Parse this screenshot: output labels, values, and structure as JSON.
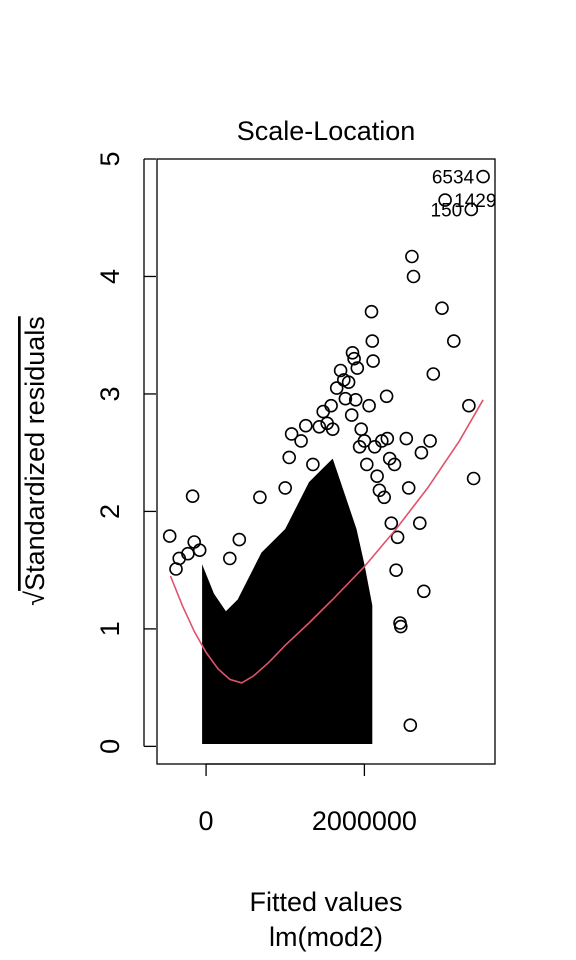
{
  "chart_data": {
    "type": "scatter",
    "title": "Scale-Location",
    "xlabel": "Fitted values",
    "xlabel2": "lm(mod2)",
    "ylabel": "Standardized residuals",
    "ylabel_prefix": "√",
    "xlim": [
      -620000,
      3650000
    ],
    "ylim": [
      -0.15,
      5.0
    ],
    "x_ticks": [
      0,
      2000000
    ],
    "x_tick_labels": [
      "0",
      "2000000"
    ],
    "y_ticks": [
      0,
      1,
      2,
      3,
      4,
      5
    ],
    "y_tick_labels": [
      "0",
      "1",
      "2",
      "3",
      "4",
      "5"
    ],
    "grid": false,
    "colors": {
      "points": "#000000",
      "smoother": "#DF536B"
    },
    "smoother": {
      "x": [
        -450000,
        -300000,
        -150000,
        0,
        150000,
        300000,
        450000,
        600000,
        800000,
        1000000,
        1300000,
        1600000,
        2000000,
        2400000,
        2800000,
        3200000,
        3500000
      ],
      "y": [
        1.45,
        1.2,
        0.98,
        0.8,
        0.66,
        0.57,
        0.54,
        0.6,
        0.72,
        0.86,
        1.05,
        1.25,
        1.53,
        1.85,
        2.2,
        2.6,
        2.95
      ]
    },
    "labeled_points": [
      {
        "label": "6534",
        "x": 3500000,
        "y": 4.85
      },
      {
        "label": "1429",
        "x": 3020000,
        "y": 4.65
      },
      {
        "label": "150",
        "x": 3350000,
        "y": 4.57
      }
    ],
    "outliers": [
      {
        "x": -460000,
        "y": 1.79
      },
      {
        "x": -380000,
        "y": 1.51
      },
      {
        "x": -340000,
        "y": 1.6
      },
      {
        "x": -230000,
        "y": 1.64
      },
      {
        "x": -170000,
        "y": 2.13
      },
      {
        "x": -150000,
        "y": 1.74
      },
      {
        "x": -80000,
        "y": 1.67
      },
      {
        "x": 300000,
        "y": 1.6
      },
      {
        "x": 420000,
        "y": 1.76
      },
      {
        "x": 680000,
        "y": 2.12
      },
      {
        "x": 1000000,
        "y": 2.2
      },
      {
        "x": 1050000,
        "y": 2.46
      },
      {
        "x": 1080000,
        "y": 2.66
      },
      {
        "x": 1200000,
        "y": 2.6
      },
      {
        "x": 1260000,
        "y": 2.73
      },
      {
        "x": 1350000,
        "y": 2.4
      },
      {
        "x": 1430000,
        "y": 2.72
      },
      {
        "x": 1480000,
        "y": 2.85
      },
      {
        "x": 1530000,
        "y": 2.75
      },
      {
        "x": 1580000,
        "y": 2.9
      },
      {
        "x": 1600000,
        "y": 2.7
      },
      {
        "x": 1650000,
        "y": 3.05
      },
      {
        "x": 1700000,
        "y": 3.2
      },
      {
        "x": 1740000,
        "y": 3.12
      },
      {
        "x": 1760000,
        "y": 2.96
      },
      {
        "x": 1800000,
        "y": 3.1
      },
      {
        "x": 1840000,
        "y": 2.82
      },
      {
        "x": 1850000,
        "y": 3.35
      },
      {
        "x": 1870000,
        "y": 3.3
      },
      {
        "x": 1890000,
        "y": 2.95
      },
      {
        "x": 1910000,
        "y": 3.22
      },
      {
        "x": 1940000,
        "y": 2.55
      },
      {
        "x": 1960000,
        "y": 2.7
      },
      {
        "x": 2000000,
        "y": 2.6
      },
      {
        "x": 2030000,
        "y": 2.4
      },
      {
        "x": 2060000,
        "y": 2.9
      },
      {
        "x": 2090000,
        "y": 3.7
      },
      {
        "x": 2100000,
        "y": 3.45
      },
      {
        "x": 2110000,
        "y": 3.28
      },
      {
        "x": 2130000,
        "y": 2.55
      },
      {
        "x": 2160000,
        "y": 2.3
      },
      {
        "x": 2190000,
        "y": 2.18
      },
      {
        "x": 2220000,
        "y": 2.6
      },
      {
        "x": 2250000,
        "y": 2.12
      },
      {
        "x": 2280000,
        "y": 2.98
      },
      {
        "x": 2290000,
        "y": 2.62
      },
      {
        "x": 2320000,
        "y": 2.45
      },
      {
        "x": 2340000,
        "y": 1.9
      },
      {
        "x": 2380000,
        "y": 2.4
      },
      {
        "x": 2400000,
        "y": 1.5
      },
      {
        "x": 2420000,
        "y": 1.78
      },
      {
        "x": 2450000,
        "y": 1.05
      },
      {
        "x": 2460000,
        "y": 1.02
      },
      {
        "x": 2530000,
        "y": 2.62
      },
      {
        "x": 2560000,
        "y": 2.2
      },
      {
        "x": 2580000,
        "y": 0.18
      },
      {
        "x": 2600000,
        "y": 4.17
      },
      {
        "x": 2620000,
        "y": 4.0
      },
      {
        "x": 2700000,
        "y": 1.9
      },
      {
        "x": 2720000,
        "y": 2.5
      },
      {
        "x": 2750000,
        "y": 1.32
      },
      {
        "x": 2830000,
        "y": 2.6
      },
      {
        "x": 2870000,
        "y": 3.17
      },
      {
        "x": 2980000,
        "y": 3.73
      },
      {
        "x": 3130000,
        "y": 3.45
      },
      {
        "x": 3320000,
        "y": 2.9
      },
      {
        "x": 3380000,
        "y": 2.28
      }
    ]
  }
}
